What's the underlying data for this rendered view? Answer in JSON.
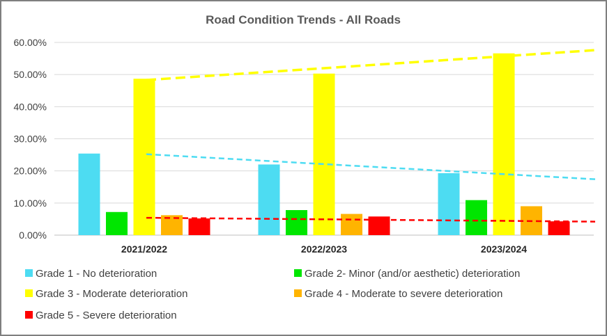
{
  "chart_data": {
    "type": "bar",
    "title": "Road Condition  Trends - All Roads",
    "xlabel": "",
    "ylabel": "",
    "categories": [
      "2021/2022",
      "2022/2023",
      "2023/2024"
    ],
    "ylim": [
      0,
      0.6
    ],
    "yticks": [
      0,
      0.1,
      0.2,
      0.3,
      0.4,
      0.5,
      0.6
    ],
    "ytick_labels": [
      "0.00%",
      "10.00%",
      "20.00%",
      "30.00%",
      "40.00%",
      "50.00%",
      "60.00%"
    ],
    "grid": true,
    "legend_position": "bottom",
    "series": [
      {
        "name": "Grade 1 - No deterioration",
        "color": "#4ddcf2",
        "values": [
          0.254,
          0.22,
          0.193
        ]
      },
      {
        "name": "Grade 2- Minor (and/or aesthetic) deterioration",
        "color": "#00e600",
        "values": [
          0.072,
          0.078,
          0.109
        ]
      },
      {
        "name": "Grade 3 - Moderate deterioration",
        "color": "#ffff00",
        "values": [
          0.487,
          0.503,
          0.566
        ]
      },
      {
        "name": "Grade 4 - Moderate to severe deterioration",
        "color": "#ffb400",
        "values": [
          0.062,
          0.066,
          0.09
        ]
      },
      {
        "name": "Grade 5 - Severe deterioration",
        "color": "#ff0000",
        "values": [
          0.052,
          0.058,
          0.043
        ]
      }
    ],
    "trendlines": [
      {
        "series": "Grade 3 - Moderate deterioration",
        "color": "#ffff00",
        "start": 0.483,
        "end": 0.576,
        "style": "dashed"
      },
      {
        "series": "Grade 1 - No deterioration",
        "color": "#4ddcf2",
        "start": 0.252,
        "end": 0.174,
        "style": "dashed"
      },
      {
        "series": "Grade 5 - Severe deterioration",
        "color": "#ff0000",
        "start": 0.054,
        "end": 0.042,
        "style": "dashed"
      }
    ]
  }
}
